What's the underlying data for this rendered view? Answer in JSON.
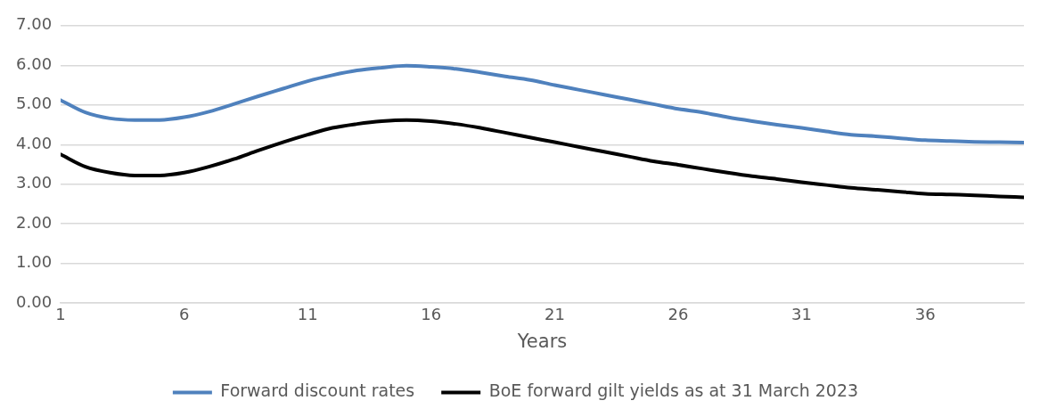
{
  "chart_data": {
    "type": "line",
    "xlabel": "Years",
    "x": [
      1,
      2,
      3,
      4,
      5,
      6,
      7,
      8,
      9,
      10,
      11,
      12,
      13,
      14,
      15,
      16,
      17,
      18,
      19,
      20,
      21,
      22,
      23,
      24,
      25,
      26,
      27,
      28,
      29,
      30,
      31,
      32,
      33,
      34,
      35,
      36,
      37,
      38,
      39,
      40
    ],
    "xlim": [
      1,
      40
    ],
    "xticks": [
      1,
      6,
      11,
      16,
      21,
      26,
      31,
      36
    ],
    "ylim": [
      0,
      7
    ],
    "yticks": [
      {
        "value": 0,
        "label": "0.00"
      },
      {
        "value": 1,
        "label": "1.00"
      },
      {
        "value": 2,
        "label": "2.00"
      },
      {
        "value": 3,
        "label": "3.00"
      },
      {
        "value": 4,
        "label": "4.00"
      },
      {
        "value": 5,
        "label": "5.00"
      },
      {
        "value": 6,
        "label": "6.00"
      },
      {
        "value": 7,
        "label": "7.00"
      }
    ],
    "grid": "y",
    "legend": "bottom",
    "marker": "none",
    "line_style": "solid",
    "series": [
      {
        "name": "Forward discount rates",
        "color": "#4f81bd",
        "values": [
          5.12,
          4.81,
          4.66,
          4.62,
          4.62,
          4.69,
          4.83,
          5.02,
          5.22,
          5.41,
          5.6,
          5.75,
          5.87,
          5.94,
          5.99,
          5.96,
          5.91,
          5.82,
          5.72,
          5.63,
          5.5,
          5.38,
          5.26,
          5.14,
          5.02,
          4.9,
          4.81,
          4.69,
          4.59,
          4.5,
          4.42,
          4.33,
          4.25,
          4.21,
          4.16,
          4.11,
          4.09,
          4.07,
          4.06,
          4.05
        ]
      },
      {
        "name": "BoE forward gilt yields as at 31 March 2023",
        "color": "#000000",
        "values": [
          3.75,
          3.44,
          3.29,
          3.22,
          3.22,
          3.29,
          3.44,
          3.63,
          3.85,
          4.06,
          4.25,
          4.42,
          4.52,
          4.59,
          4.62,
          4.59,
          4.52,
          4.42,
          4.3,
          4.18,
          4.06,
          3.94,
          3.82,
          3.7,
          3.58,
          3.49,
          3.39,
          3.29,
          3.2,
          3.13,
          3.05,
          2.98,
          2.91,
          2.86,
          2.81,
          2.76,
          2.74,
          2.72,
          2.69,
          2.67
        ]
      }
    ]
  }
}
